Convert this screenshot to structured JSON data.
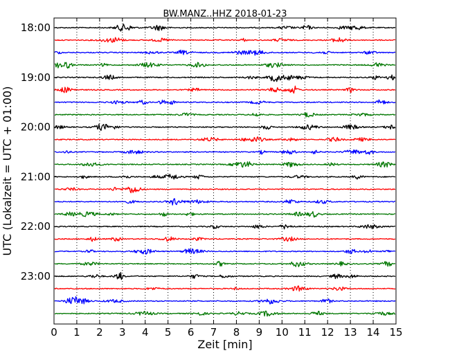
{
  "chart_data": {
    "type": "line",
    "title": "BW.MANZ..HHZ 2018-01-23",
    "xlabel": "Zeit  [min]",
    "ylabel": "UTC (Lokalzeit = UTC + 01:00)",
    "xlim": [
      0,
      15
    ],
    "x_ticks": [
      "0",
      "1",
      "2",
      "3",
      "4",
      "5",
      "6",
      "7",
      "8",
      "9",
      "10",
      "11",
      "12",
      "13",
      "14",
      "15"
    ],
    "y_tick_labels": [
      "18:00",
      "19:00",
      "20:00",
      "21:00",
      "22:00",
      "23:00"
    ],
    "grid": "vertical dotted",
    "trace_colors": [
      "#000000",
      "#ff0000",
      "#0000ff",
      "#007700"
    ],
    "traces": [
      {
        "start": "18:00",
        "color": "#000000"
      },
      {
        "start": "18:15",
        "color": "#ff0000"
      },
      {
        "start": "18:30",
        "color": "#0000ff"
      },
      {
        "start": "18:45",
        "color": "#007700"
      },
      {
        "start": "19:00",
        "color": "#000000"
      },
      {
        "start": "19:15",
        "color": "#ff0000"
      },
      {
        "start": "19:30",
        "color": "#0000ff"
      },
      {
        "start": "19:45",
        "color": "#007700"
      },
      {
        "start": "20:00",
        "color": "#000000"
      },
      {
        "start": "20:15",
        "color": "#ff0000"
      },
      {
        "start": "20:30",
        "color": "#0000ff"
      },
      {
        "start": "20:45",
        "color": "#007700"
      },
      {
        "start": "21:00",
        "color": "#000000"
      },
      {
        "start": "21:15",
        "color": "#ff0000"
      },
      {
        "start": "21:30",
        "color": "#0000ff"
      },
      {
        "start": "21:45",
        "color": "#007700"
      },
      {
        "start": "22:00",
        "color": "#000000"
      },
      {
        "start": "22:15",
        "color": "#ff0000"
      },
      {
        "start": "22:30",
        "color": "#0000ff"
      },
      {
        "start": "22:45",
        "color": "#007700"
      },
      {
        "start": "23:00",
        "color": "#000000"
      },
      {
        "start": "23:15",
        "color": "#ff0000"
      },
      {
        "start": "23:30",
        "color": "#0000ff"
      },
      {
        "start": "23:45",
        "color": "#007700"
      }
    ]
  }
}
